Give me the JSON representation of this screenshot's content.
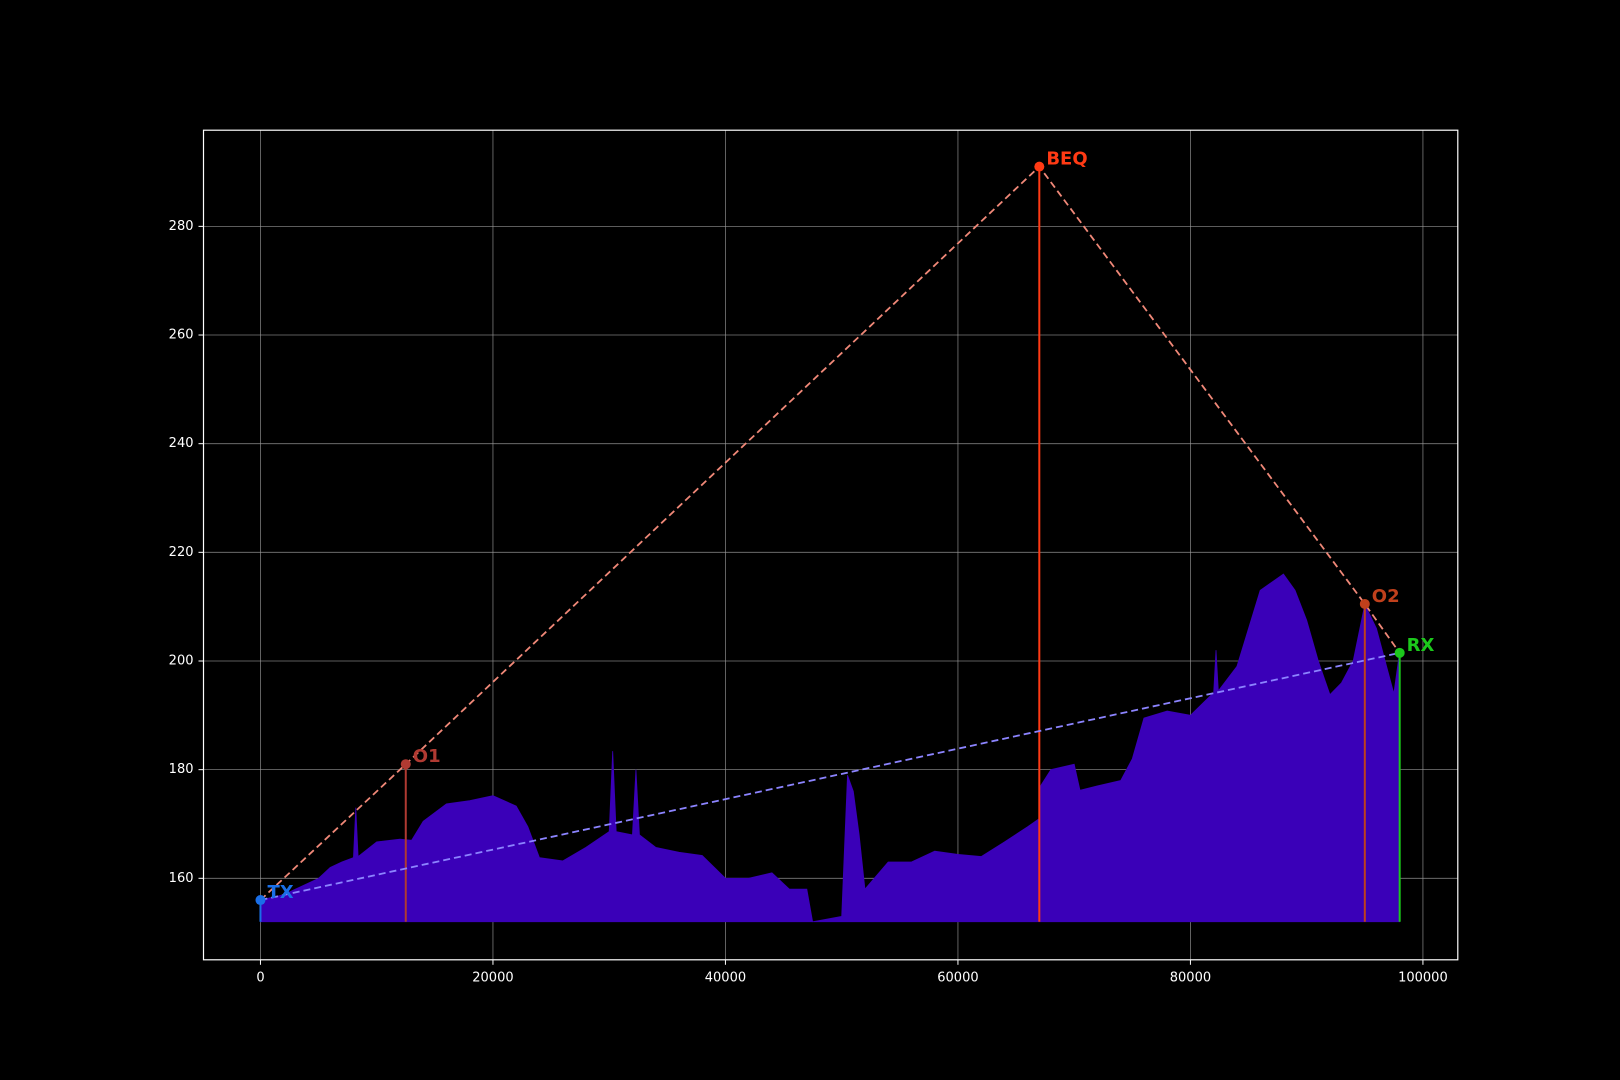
{
  "chart_data": {
    "type": "area",
    "color": "#3a00b8",
    "xlim": [
      -4900,
      103000
    ],
    "ylim": [
      145,
      297.7
    ],
    "xticks": [
      0,
      20000,
      40000,
      60000,
      80000,
      100000
    ],
    "yticks": [
      160,
      180,
      200,
      220,
      240,
      260,
      280
    ],
    "grid": true,
    "x": [
      0,
      2000,
      5000,
      6000,
      7000,
      8000,
      8200,
      8400,
      10000,
      12000,
      13000,
      14000,
      16000,
      18000,
      20000,
      22000,
      23000,
      24000,
      26000,
      28000,
      30000,
      30300,
      30600,
      32000,
      32300,
      32600,
      34000,
      36000,
      38000,
      40000,
      42000,
      44000,
      45500,
      47000,
      47500,
      50000,
      50500,
      51000,
      51500,
      52000,
      54000,
      56000,
      58000,
      60000,
      62000,
      64000,
      66000,
      67000,
      67100,
      68000,
      70000,
      70500,
      72000,
      74000,
      75000,
      76000,
      78000,
      80000,
      82000,
      82200,
      82400,
      84000,
      86000,
      88000,
      89000,
      90000,
      91000,
      92000,
      93000,
      94000,
      95000,
      96000,
      97000,
      97500,
      98000
    ],
    "values": [
      156,
      157,
      160,
      162,
      163,
      163.8,
      173,
      164,
      166.7,
      167.2,
      167,
      170.5,
      173.7,
      174.3,
      175.2,
      173.3,
      169.5,
      163.8,
      163.2,
      165.7,
      168.6,
      183.4,
      168.6,
      168,
      180,
      168,
      165.7,
      164.8,
      164.2,
      160,
      160,
      161,
      158,
      158,
      152,
      153,
      179,
      176,
      168,
      158,
      163,
      163,
      165,
      164.4,
      164,
      166.7,
      169.5,
      171,
      177,
      180,
      181,
      176.2,
      177,
      178,
      182,
      189.5,
      190.8,
      190,
      194.2,
      202,
      194.5,
      199,
      213,
      216,
      213,
      207.5,
      200,
      193.8,
      196,
      200,
      210.4,
      206,
      198,
      194,
      201.8
    ],
    "path_color": "#f08878",
    "los_color": "#8c84ff",
    "points": [
      {
        "label": "TX",
        "x": 0,
        "y": 156,
        "color": "#1a6fe8"
      },
      {
        "label": "O1",
        "x": 12500,
        "y": 181,
        "color": "#b03a32"
      },
      {
        "label": "BEQ",
        "x": 67000,
        "y": 291,
        "color": "#ff3a14"
      },
      {
        "label": "O2",
        "x": 95000,
        "y": 210.5,
        "color": "#c0401c"
      },
      {
        "label": "RX",
        "x": 98000,
        "y": 201.5,
        "color": "#1cc81c"
      }
    ]
  }
}
